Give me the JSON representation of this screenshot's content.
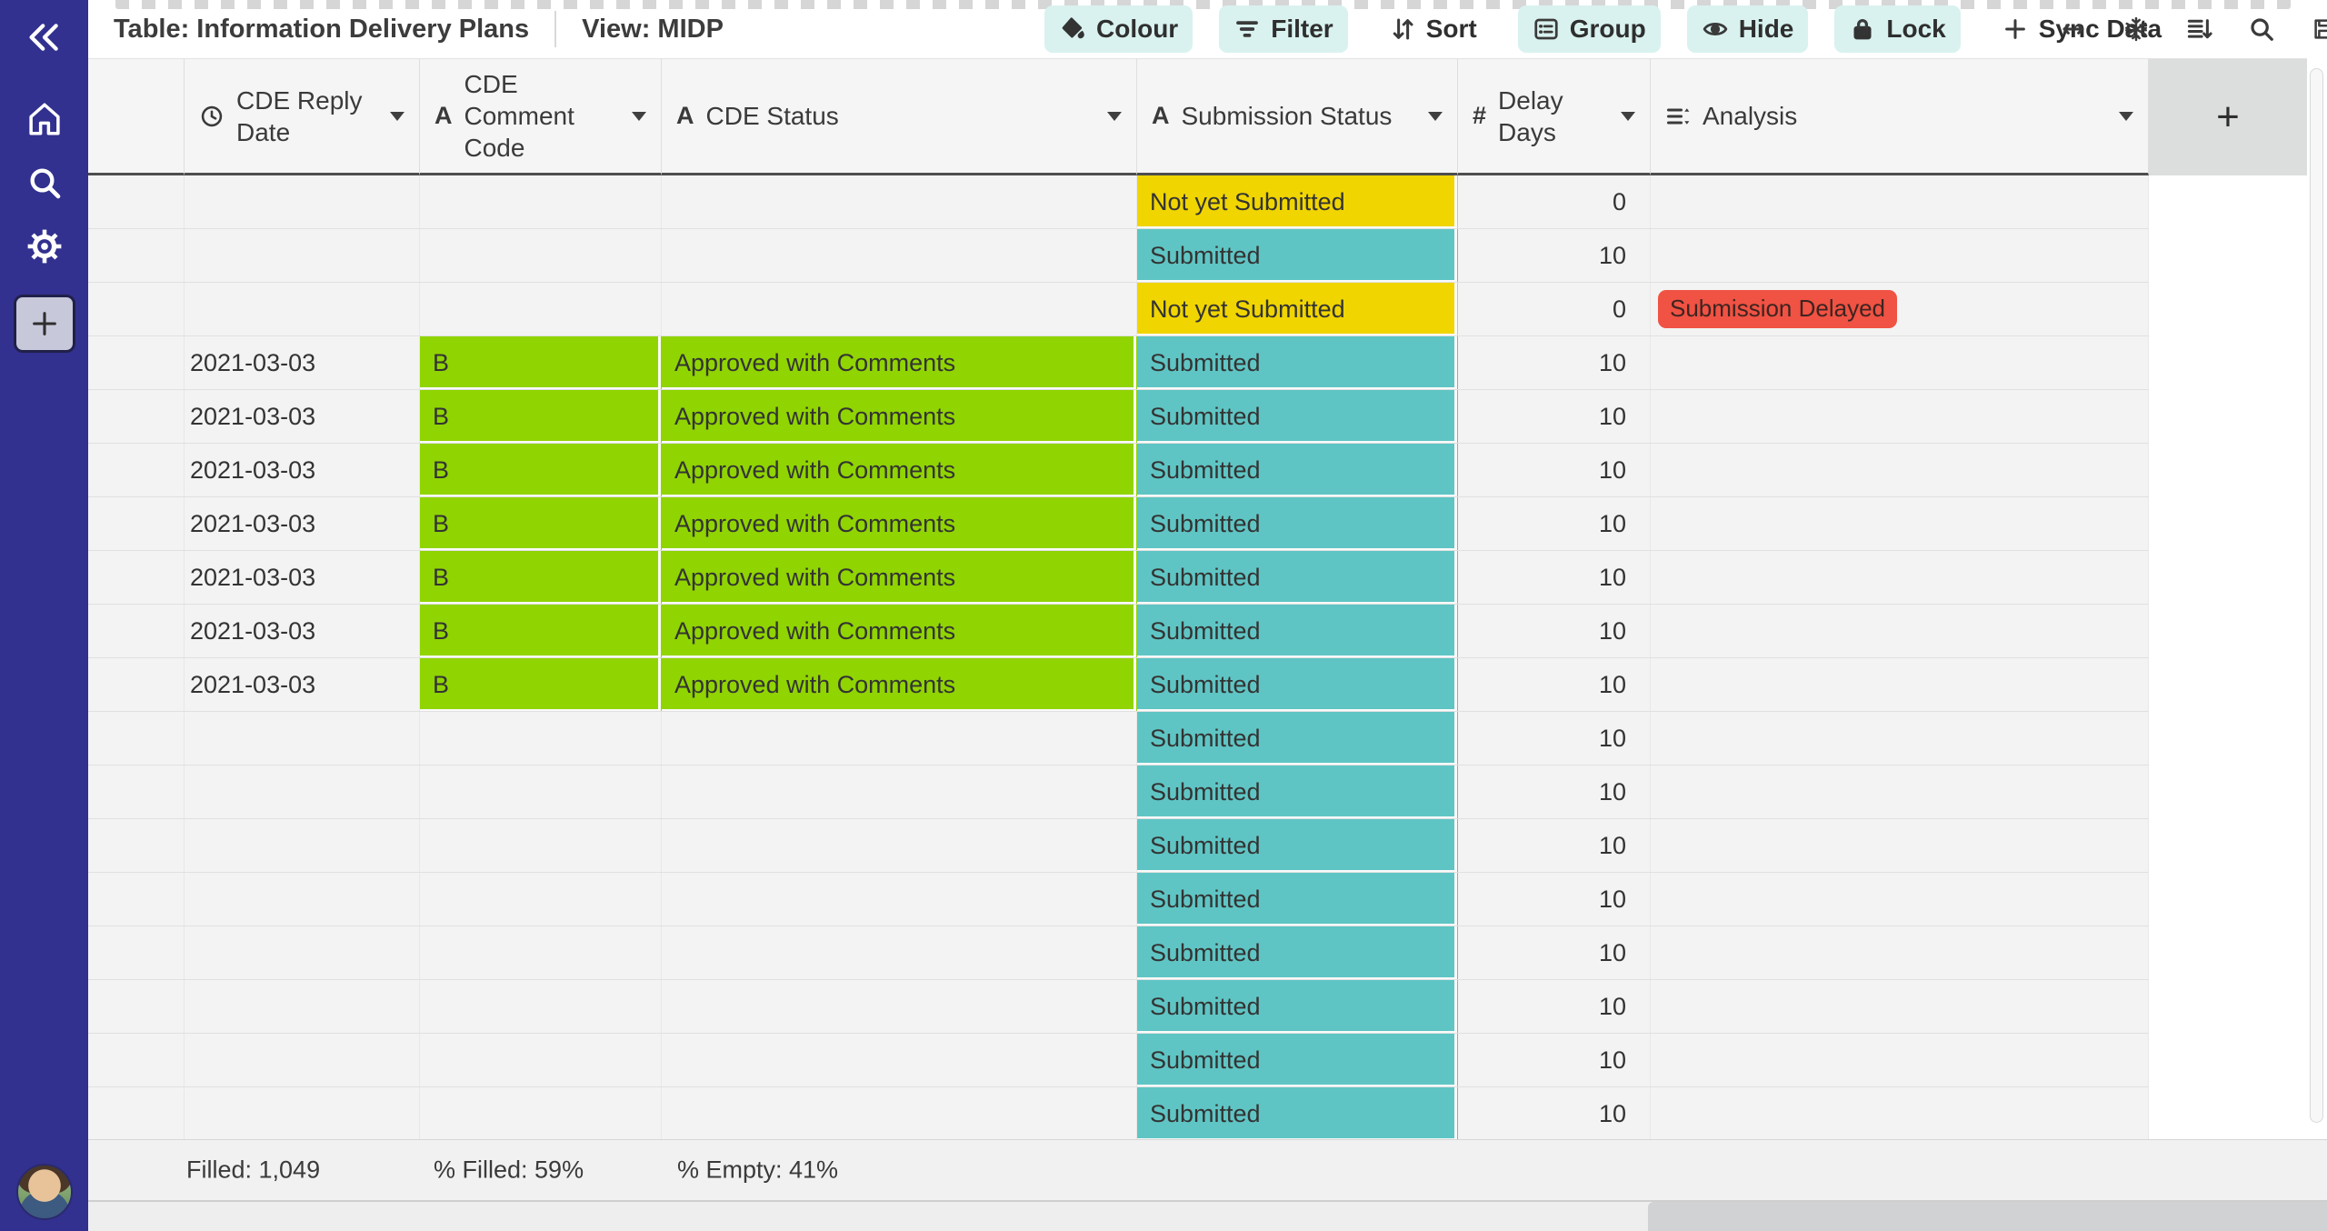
{
  "app": {
    "table_label": "Table: Information Delivery Plans",
    "view_label": "View: MIDP"
  },
  "toolbar": {
    "buttons": [
      {
        "label": "Colour",
        "icon": "paint-icon",
        "highlighted": true
      },
      {
        "label": "Filter",
        "icon": "filter-icon",
        "highlighted": true
      },
      {
        "label": "Sort",
        "icon": "sort-icon",
        "highlighted": false
      },
      {
        "label": "Group",
        "icon": "group-icon",
        "highlighted": true
      },
      {
        "label": "Hide",
        "icon": "eye-icon",
        "highlighted": true
      },
      {
        "label": "Lock",
        "icon": "lock-icon",
        "highlighted": true
      },
      {
        "label": "Sync Data",
        "icon": "plus-icon",
        "highlighted": false
      }
    ],
    "right_icons": [
      "expand-horizontal-icon",
      "snowflake-freeze-icon",
      "row-height-icon",
      "search-icon",
      "save-icon",
      "more-menu-icon"
    ]
  },
  "sidebar": {
    "icons": [
      "collapse-icon",
      "home-icon",
      "search-icon",
      "settings-icon",
      "add-icon",
      "user-avatar"
    ]
  },
  "grid": {
    "columns": [
      {
        "key": "date",
        "icon": "clock-icon",
        "type": "date",
        "label": "CDE Reply Date"
      },
      {
        "key": "code",
        "icon": "text-field-icon",
        "type": "text",
        "label": "CDE Comment Code"
      },
      {
        "key": "status",
        "icon": "text-field-icon",
        "type": "text",
        "label": "CDE Status"
      },
      {
        "key": "sub",
        "icon": "text-field-icon",
        "type": "text",
        "label": "Submission Status"
      },
      {
        "key": "delay",
        "icon": "number-field-icon",
        "type": "number",
        "label": "Delay Days"
      },
      {
        "key": "analysis",
        "icon": "select-field-icon",
        "type": "select",
        "label": "Analysis"
      }
    ],
    "add_column_label": "+",
    "cell_colors": {
      "Submitted": "teal",
      "Not yet Submitted": "yellow",
      "filled_text": "green"
    },
    "colors": {
      "yellow": "#f0d501",
      "teal": "#5fc5c4",
      "green": "#90d402",
      "badge_red": "#f05243",
      "sidebar": "#32318f",
      "button_highlight": "#d9f2ef"
    },
    "rows": [
      {
        "date": "",
        "code": "",
        "status": "",
        "sub": "Not yet Submitted",
        "delay": "0",
        "analysis": ""
      },
      {
        "date": "",
        "code": "",
        "status": "",
        "sub": "Submitted",
        "delay": "10",
        "analysis": ""
      },
      {
        "date": "",
        "code": "",
        "status": "",
        "sub": "Not yet Submitted",
        "delay": "0",
        "analysis": "Submission Delayed"
      },
      {
        "date": "2021-03-03",
        "code": "B",
        "status": "Approved with Comments",
        "sub": "Submitted",
        "delay": "10",
        "analysis": ""
      },
      {
        "date": "2021-03-03",
        "code": "B",
        "status": "Approved with Comments",
        "sub": "Submitted",
        "delay": "10",
        "analysis": ""
      },
      {
        "date": "2021-03-03",
        "code": "B",
        "status": "Approved with Comments",
        "sub": "Submitted",
        "delay": "10",
        "analysis": ""
      },
      {
        "date": "2021-03-03",
        "code": "B",
        "status": "Approved with Comments",
        "sub": "Submitted",
        "delay": "10",
        "analysis": ""
      },
      {
        "date": "2021-03-03",
        "code": "B",
        "status": "Approved with Comments",
        "sub": "Submitted",
        "delay": "10",
        "analysis": ""
      },
      {
        "date": "2021-03-03",
        "code": "B",
        "status": "Approved with Comments",
        "sub": "Submitted",
        "delay": "10",
        "analysis": ""
      },
      {
        "date": "2021-03-03",
        "code": "B",
        "status": "Approved with Comments",
        "sub": "Submitted",
        "delay": "10",
        "analysis": ""
      },
      {
        "date": "",
        "code": "",
        "status": "",
        "sub": "Submitted",
        "delay": "10",
        "analysis": ""
      },
      {
        "date": "",
        "code": "",
        "status": "",
        "sub": "Submitted",
        "delay": "10",
        "analysis": ""
      },
      {
        "date": "",
        "code": "",
        "status": "",
        "sub": "Submitted",
        "delay": "10",
        "analysis": ""
      },
      {
        "date": "",
        "code": "",
        "status": "",
        "sub": "Submitted",
        "delay": "10",
        "analysis": ""
      },
      {
        "date": "",
        "code": "",
        "status": "",
        "sub": "Submitted",
        "delay": "10",
        "analysis": ""
      },
      {
        "date": "",
        "code": "",
        "status": "",
        "sub": "Submitted",
        "delay": "10",
        "analysis": ""
      },
      {
        "date": "",
        "code": "",
        "status": "",
        "sub": "Submitted",
        "delay": "10",
        "analysis": ""
      },
      {
        "date": "",
        "code": "",
        "status": "",
        "sub": "Submitted",
        "delay": "10",
        "analysis": ""
      }
    ]
  },
  "footer": {
    "filled": "Filled: 1,049",
    "pct_filled": "% Filled: 59%",
    "pct_empty": "% Empty: 41%"
  }
}
